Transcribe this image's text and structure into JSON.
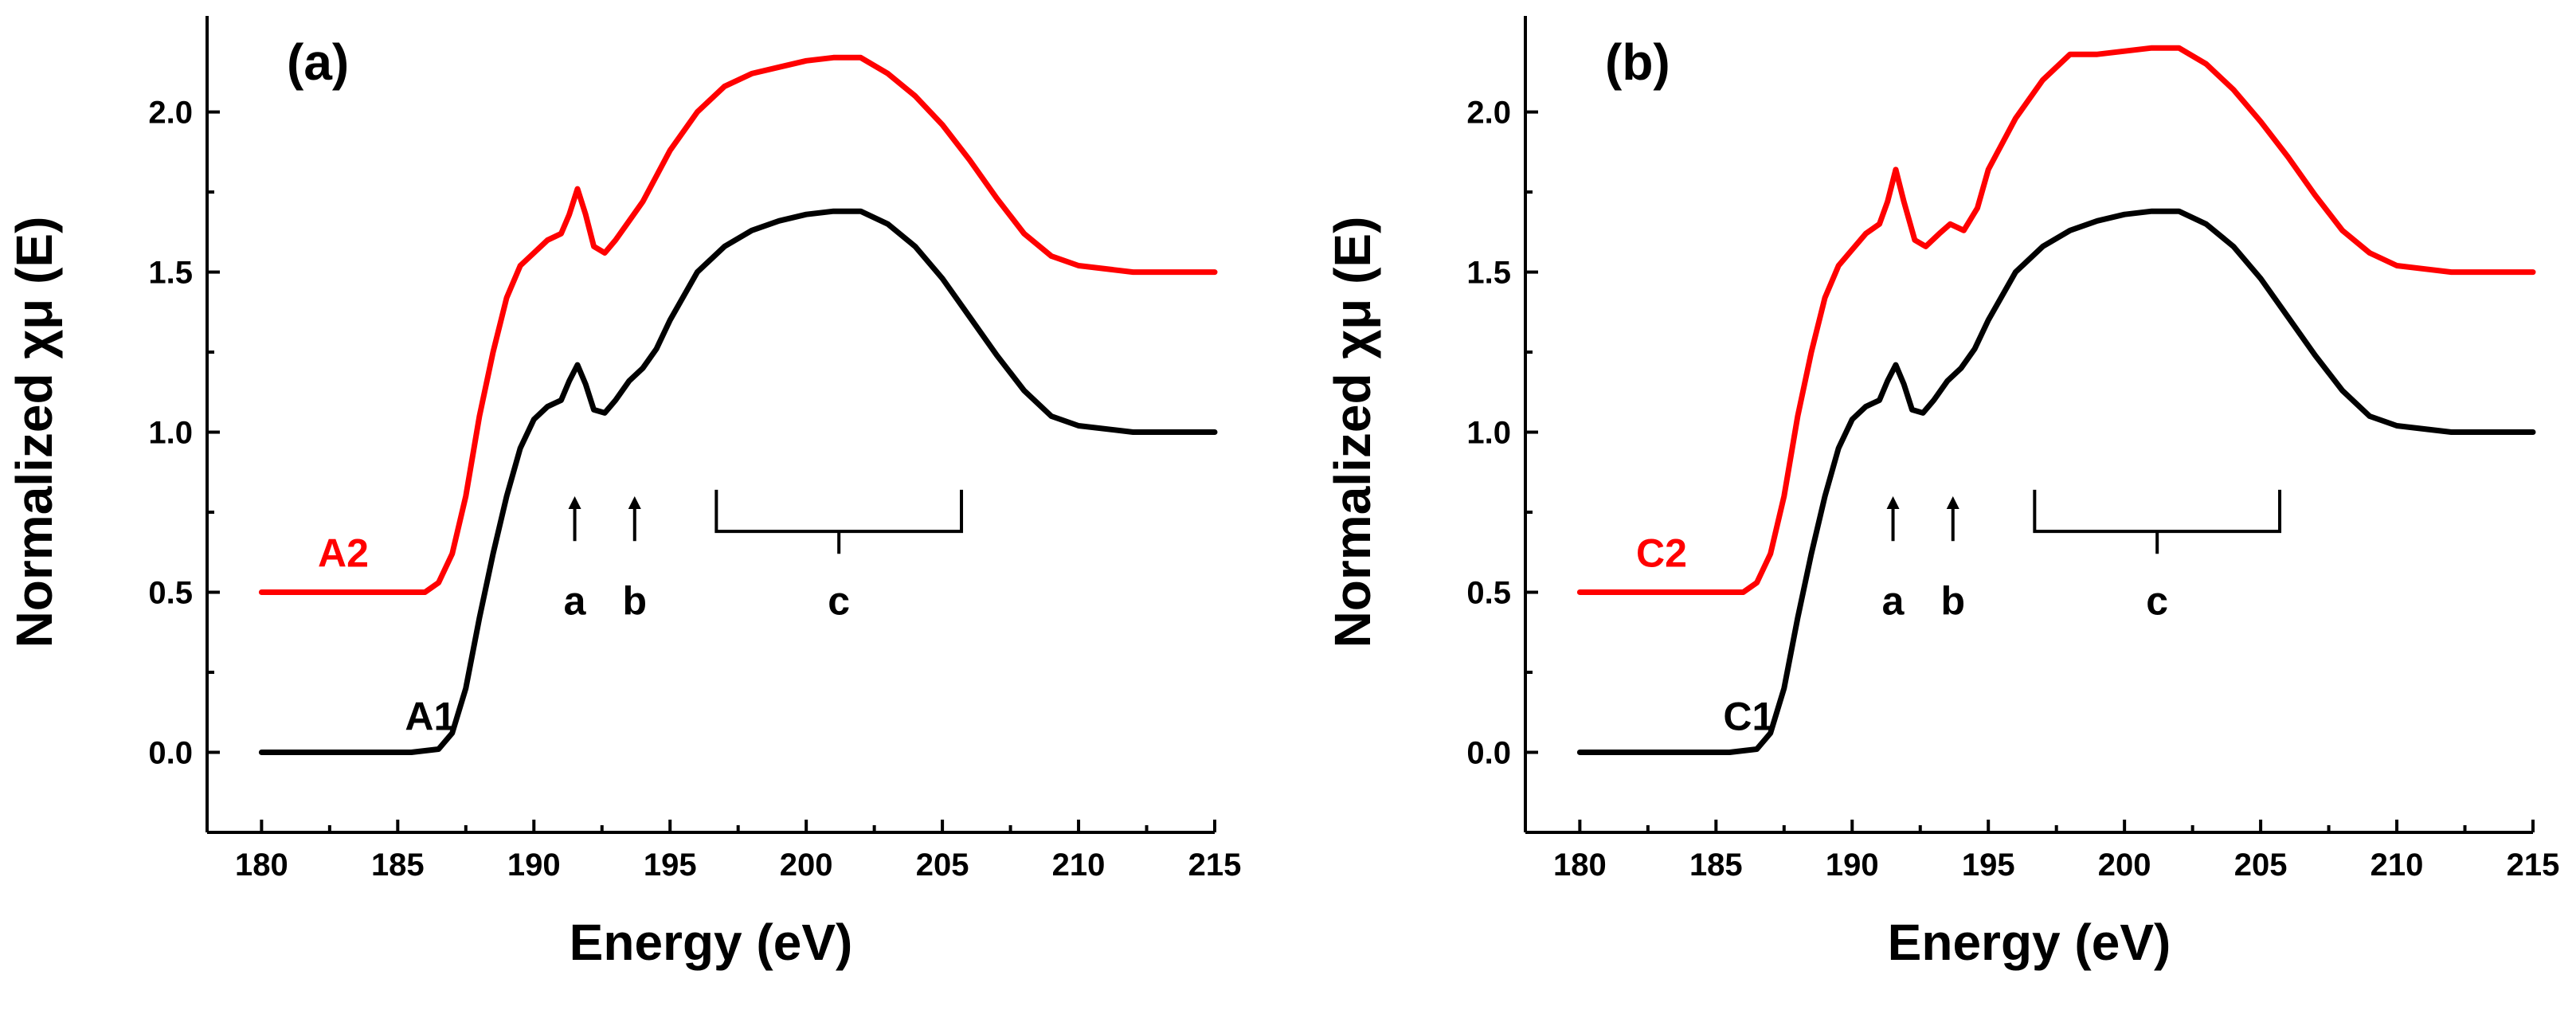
{
  "chart_data": [
    {
      "type": "line",
      "panel_label": "(a)",
      "xlabel": "Energy (eV)",
      "ylabel": "Normalized χμ (E)",
      "xlim": [
        178,
        215
      ],
      "ylim": [
        -0.25,
        2.3
      ],
      "xticks": [
        180,
        185,
        190,
        195,
        200,
        205,
        210,
        215
      ],
      "yticks": [
        0.0,
        0.5,
        1.0,
        1.5,
        2.0
      ],
      "ytick_labels": [
        "0.0",
        "0.5",
        "1.0",
        "1.5",
        "2.0"
      ],
      "series": [
        {
          "name": "A1",
          "color": "#000000",
          "label_pos": [
            186.2,
            0.07
          ],
          "points": [
            [
              180,
              0.0
            ],
            [
              182,
              0.0
            ],
            [
              184,
              0.0
            ],
            [
              185.5,
              0.0
            ],
            [
              186.5,
              0.01
            ],
            [
              187,
              0.06
            ],
            [
              187.5,
              0.2
            ],
            [
              188,
              0.42
            ],
            [
              188.5,
              0.62
            ],
            [
              189,
              0.8
            ],
            [
              189.5,
              0.95
            ],
            [
              190,
              1.04
            ],
            [
              190.5,
              1.08
            ],
            [
              191,
              1.1
            ],
            [
              191.3,
              1.16
            ],
            [
              191.6,
              1.21
            ],
            [
              191.9,
              1.15
            ],
            [
              192.2,
              1.07
            ],
            [
              192.6,
              1.06
            ],
            [
              193,
              1.1
            ],
            [
              193.5,
              1.16
            ],
            [
              194,
              1.2
            ],
            [
              194.5,
              1.26
            ],
            [
              195,
              1.35
            ],
            [
              196,
              1.5
            ],
            [
              197,
              1.58
            ],
            [
              198,
              1.63
            ],
            [
              199,
              1.66
            ],
            [
              200,
              1.68
            ],
            [
              201,
              1.69
            ],
            [
              202,
              1.69
            ],
            [
              203,
              1.65
            ],
            [
              204,
              1.58
            ],
            [
              205,
              1.48
            ],
            [
              206,
              1.36
            ],
            [
              207,
              1.24
            ],
            [
              208,
              1.13
            ],
            [
              209,
              1.05
            ],
            [
              210,
              1.02
            ],
            [
              212,
              1.0
            ],
            [
              215,
              1.0
            ]
          ]
        },
        {
          "name": "A2",
          "color": "#ff0000",
          "label_pos": [
            183.0,
            0.58
          ],
          "points": [
            [
              180,
              0.5
            ],
            [
              184,
              0.5
            ],
            [
              185,
              0.5
            ],
            [
              186,
              0.5
            ],
            [
              186.5,
              0.53
            ],
            [
              187,
              0.62
            ],
            [
              187.5,
              0.8
            ],
            [
              188,
              1.05
            ],
            [
              188.5,
              1.25
            ],
            [
              189,
              1.42
            ],
            [
              189.5,
              1.52
            ],
            [
              190,
              1.56
            ],
            [
              190.5,
              1.6
            ],
            [
              191,
              1.62
            ],
            [
              191.3,
              1.68
            ],
            [
              191.6,
              1.76
            ],
            [
              191.9,
              1.68
            ],
            [
              192.2,
              1.58
            ],
            [
              192.6,
              1.56
            ],
            [
              193,
              1.6
            ],
            [
              193.5,
              1.66
            ],
            [
              194,
              1.72
            ],
            [
              194.5,
              1.8
            ],
            [
              195,
              1.88
            ],
            [
              196,
              2.0
            ],
            [
              197,
              2.08
            ],
            [
              198,
              2.12
            ],
            [
              199,
              2.14
            ],
            [
              200,
              2.16
            ],
            [
              201,
              2.17
            ],
            [
              202,
              2.17
            ],
            [
              203,
              2.12
            ],
            [
              204,
              2.05
            ],
            [
              205,
              1.96
            ],
            [
              206,
              1.85
            ],
            [
              207,
              1.73
            ],
            [
              208,
              1.62
            ],
            [
              209,
              1.55
            ],
            [
              210,
              1.52
            ],
            [
              212,
              1.5
            ],
            [
              215,
              1.5
            ]
          ]
        }
      ],
      "annotations": [
        {
          "label": "a",
          "x": 191.5,
          "kind": "arrow"
        },
        {
          "label": "b",
          "x": 193.7,
          "kind": "arrow"
        },
        {
          "label": "c",
          "x_range": [
            196.7,
            205.7
          ],
          "kind": "bracket"
        }
      ]
    },
    {
      "type": "line",
      "panel_label": "(b)",
      "xlabel": "Energy (eV)",
      "ylabel": "Normalized χμ (E)",
      "xlim": [
        178,
        215
      ],
      "ylim": [
        -0.25,
        2.3
      ],
      "xticks": [
        180,
        185,
        190,
        195,
        200,
        205,
        210,
        215
      ],
      "yticks": [
        0.0,
        0.5,
        1.0,
        1.5,
        2.0
      ],
      "ytick_labels": [
        "0.0",
        "0.5",
        "1.0",
        "1.5",
        "2.0"
      ],
      "series": [
        {
          "name": "C1",
          "color": "#000000",
          "label_pos": [
            186.2,
            0.07
          ],
          "points": [
            [
              180,
              0.0
            ],
            [
              182,
              0.0
            ],
            [
              184,
              0.0
            ],
            [
              185.5,
              0.0
            ],
            [
              186.5,
              0.01
            ],
            [
              187,
              0.06
            ],
            [
              187.5,
              0.2
            ],
            [
              188,
              0.42
            ],
            [
              188.5,
              0.62
            ],
            [
              189,
              0.8
            ],
            [
              189.5,
              0.95
            ],
            [
              190,
              1.04
            ],
            [
              190.5,
              1.08
            ],
            [
              191,
              1.1
            ],
            [
              191.3,
              1.16
            ],
            [
              191.6,
              1.21
            ],
            [
              191.9,
              1.15
            ],
            [
              192.2,
              1.07
            ],
            [
              192.6,
              1.06
            ],
            [
              193,
              1.1
            ],
            [
              193.5,
              1.16
            ],
            [
              194,
              1.2
            ],
            [
              194.5,
              1.26
            ],
            [
              195,
              1.35
            ],
            [
              196,
              1.5
            ],
            [
              197,
              1.58
            ],
            [
              198,
              1.63
            ],
            [
              199,
              1.66
            ],
            [
              200,
              1.68
            ],
            [
              201,
              1.69
            ],
            [
              202,
              1.69
            ],
            [
              203,
              1.65
            ],
            [
              204,
              1.58
            ],
            [
              205,
              1.48
            ],
            [
              206,
              1.36
            ],
            [
              207,
              1.24
            ],
            [
              208,
              1.13
            ],
            [
              209,
              1.05
            ],
            [
              210,
              1.02
            ],
            [
              212,
              1.0
            ],
            [
              215,
              1.0
            ]
          ]
        },
        {
          "name": "C2",
          "color": "#ff0000",
          "label_pos": [
            183.0,
            0.58
          ],
          "points": [
            [
              180,
              0.5
            ],
            [
              184,
              0.5
            ],
            [
              185,
              0.5
            ],
            [
              186,
              0.5
            ],
            [
              186.5,
              0.53
            ],
            [
              187,
              0.62
            ],
            [
              187.5,
              0.8
            ],
            [
              188,
              1.05
            ],
            [
              188.5,
              1.25
            ],
            [
              189,
              1.42
            ],
            [
              189.5,
              1.52
            ],
            [
              190,
              1.57
            ],
            [
              190.5,
              1.62
            ],
            [
              191,
              1.65
            ],
            [
              191.3,
              1.72
            ],
            [
              191.6,
              1.82
            ],
            [
              191.9,
              1.72
            ],
            [
              192.3,
              1.6
            ],
            [
              192.7,
              1.58
            ],
            [
              193.2,
              1.62
            ],
            [
              193.6,
              1.65
            ],
            [
              194.1,
              1.63
            ],
            [
              194.6,
              1.7
            ],
            [
              195,
              1.82
            ],
            [
              196,
              1.98
            ],
            [
              197,
              2.1
            ],
            [
              198,
              2.18
            ],
            [
              199,
              2.18
            ],
            [
              200,
              2.19
            ],
            [
              201,
              2.2
            ],
            [
              202,
              2.2
            ],
            [
              203,
              2.15
            ],
            [
              204,
              2.07
            ],
            [
              205,
              1.97
            ],
            [
              206,
              1.86
            ],
            [
              207,
              1.74
            ],
            [
              208,
              1.63
            ],
            [
              209,
              1.56
            ],
            [
              210,
              1.52
            ],
            [
              212,
              1.5
            ],
            [
              215,
              1.5
            ]
          ]
        }
      ],
      "annotations": [
        {
          "label": "a",
          "x": 191.5,
          "kind": "arrow"
        },
        {
          "label": "b",
          "x": 193.7,
          "kind": "arrow"
        },
        {
          "label": "c",
          "x_range": [
            196.7,
            205.7
          ],
          "kind": "bracket"
        }
      ]
    }
  ]
}
